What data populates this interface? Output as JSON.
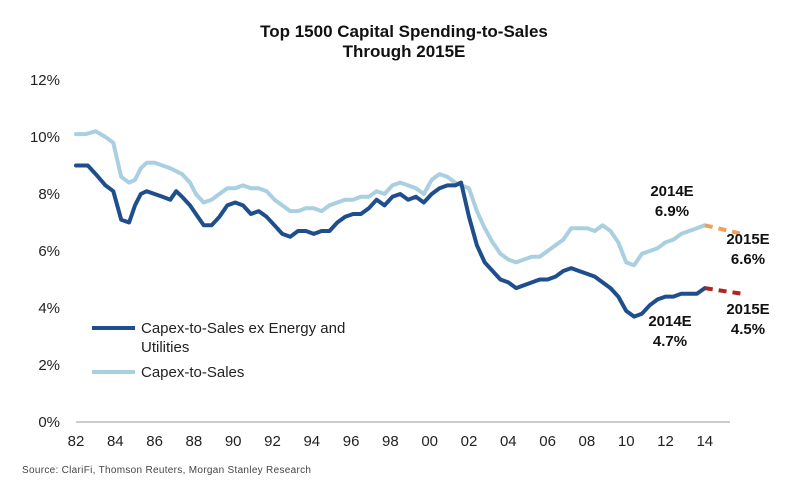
{
  "chart_data": {
    "type": "line",
    "title": "Top 1500 Capital Spending-to-Sales",
    "subtitle": "Through 2015E",
    "xlim": [
      1982,
      2016.3
    ],
    "ylim": [
      0,
      12
    ],
    "x_tick_labels": [
      "82",
      "84",
      "86",
      "88",
      "90",
      "92",
      "94",
      "96",
      "98",
      "00",
      "02",
      "04",
      "06",
      "08",
      "10",
      "12",
      "14"
    ],
    "x_tick_values": [
      1982,
      1984,
      1986,
      1988,
      1990,
      1992,
      1994,
      1996,
      1998,
      2000,
      2002,
      2004,
      2006,
      2008,
      2010,
      2012,
      2014
    ],
    "y_tick_labels": [
      "0%",
      "2%",
      "4%",
      "6%",
      "8%",
      "10%",
      "12%"
    ],
    "y_tick_values": [
      0,
      2,
      4,
      6,
      8,
      10,
      12
    ],
    "grid": false,
    "legend_position": "bottom-left",
    "series": [
      {
        "name": "Capex-to-Sales ex Energy and Utilities",
        "color": "#1f4e8c",
        "x": [
          1982,
          1982.6,
          1983,
          1983.5,
          1983.9,
          1984.3,
          1984.7,
          1985,
          1985.3,
          1985.6,
          1986,
          1986.4,
          1986.8,
          1987.1,
          1987.4,
          1987.8,
          1988.1,
          1988.5,
          1988.9,
          1989.3,
          1989.7,
          1990.1,
          1990.5,
          1990.9,
          1991.3,
          1991.7,
          1992.1,
          1992.5,
          1992.9,
          1993.3,
          1993.7,
          1994.1,
          1994.5,
          1994.9,
          1995.3,
          1995.7,
          1996.1,
          1996.5,
          1996.9,
          1997.3,
          1997.7,
          1998.1,
          1998.5,
          1998.9,
          1999.3,
          1999.7,
          2000.1,
          2000.5,
          2000.9,
          2001.3,
          2001.6,
          2002,
          2002.4,
          2002.8,
          2003.2,
          2003.6,
          2004,
          2004.4,
          2004.8,
          2005.2,
          2005.6,
          2006,
          2006.4,
          2006.8,
          2007.2,
          2007.6,
          2008,
          2008.4,
          2008.8,
          2009.2,
          2009.6,
          2010,
          2010.4,
          2010.8,
          2011.2,
          2011.6,
          2012,
          2012.4,
          2012.8,
          2013.2,
          2013.6,
          2014
        ],
        "values": [
          9.0,
          9.0,
          8.7,
          8.3,
          8.1,
          7.1,
          7.0,
          7.6,
          8.0,
          8.1,
          8.0,
          7.9,
          7.8,
          8.1,
          7.9,
          7.6,
          7.3,
          6.9,
          6.9,
          7.2,
          7.6,
          7.7,
          7.6,
          7.3,
          7.4,
          7.2,
          6.9,
          6.6,
          6.5,
          6.7,
          6.7,
          6.6,
          6.7,
          6.7,
          7.0,
          7.2,
          7.3,
          7.3,
          7.5,
          7.8,
          7.6,
          7.9,
          8.0,
          7.8,
          7.9,
          7.7,
          8.0,
          8.2,
          8.3,
          8.3,
          8.4,
          7.2,
          6.2,
          5.6,
          5.3,
          5.0,
          4.9,
          4.7,
          4.8,
          4.9,
          5.0,
          5.0,
          5.1,
          5.3,
          5.4,
          5.3,
          5.2,
          5.1,
          4.9,
          4.7,
          4.4,
          3.9,
          3.7,
          3.8,
          4.1,
          4.3,
          4.4,
          4.4,
          4.5,
          4.5,
          4.5,
          4.7
        ]
      },
      {
        "name": "Capex-to-Sales",
        "color": "#a9cfe0",
        "x": [
          1982,
          1982.5,
          1983,
          1983.5,
          1983.9,
          1984.3,
          1984.7,
          1985,
          1985.3,
          1985.6,
          1986,
          1986.4,
          1986.8,
          1987.1,
          1987.4,
          1987.8,
          1988.1,
          1988.5,
          1988.9,
          1989.3,
          1989.7,
          1990.1,
          1990.5,
          1990.9,
          1991.3,
          1991.7,
          1992.1,
          1992.5,
          1992.9,
          1993.3,
          1993.7,
          1994.1,
          1994.5,
          1994.9,
          1995.3,
          1995.7,
          1996.1,
          1996.5,
          1996.9,
          1997.3,
          1997.7,
          1998.1,
          1998.5,
          1998.9,
          1999.3,
          1999.7,
          2000.1,
          2000.5,
          2000.9,
          2001.3,
          2001.6,
          2002,
          2002.4,
          2002.8,
          2003.2,
          2003.6,
          2004,
          2004.4,
          2004.8,
          2005.2,
          2005.6,
          2006,
          2006.4,
          2006.8,
          2007.2,
          2007.6,
          2008,
          2008.4,
          2008.8,
          2009.2,
          2009.6,
          2010,
          2010.4,
          2010.8,
          2011.2,
          2011.6,
          2012,
          2012.4,
          2012.8,
          2013.2,
          2013.6,
          2014
        ],
        "values": [
          10.1,
          10.1,
          10.2,
          10.0,
          9.8,
          8.6,
          8.4,
          8.5,
          8.9,
          9.1,
          9.1,
          9.0,
          8.9,
          8.8,
          8.7,
          8.4,
          8.0,
          7.7,
          7.8,
          8.0,
          8.2,
          8.2,
          8.3,
          8.2,
          8.2,
          8.1,
          7.8,
          7.6,
          7.4,
          7.4,
          7.5,
          7.5,
          7.4,
          7.6,
          7.7,
          7.8,
          7.8,
          7.9,
          7.9,
          8.1,
          8.0,
          8.3,
          8.4,
          8.3,
          8.2,
          8.0,
          8.5,
          8.7,
          8.6,
          8.4,
          8.3,
          8.2,
          7.4,
          6.8,
          6.3,
          5.9,
          5.7,
          5.6,
          5.7,
          5.8,
          5.8,
          6.0,
          6.2,
          6.4,
          6.8,
          6.8,
          6.8,
          6.7,
          6.9,
          6.7,
          6.3,
          5.6,
          5.5,
          5.9,
          6.0,
          6.1,
          6.3,
          6.4,
          6.6,
          6.7,
          6.8,
          6.9
        ]
      },
      {
        "name": "Capex-to-Sales 2015E",
        "color": "#f0a05a",
        "dashed": true,
        "x": [
          2014,
          2015.9
        ],
        "values": [
          6.9,
          6.6
        ]
      },
      {
        "name": "Capex-to-Sales ex Energy and Utilities 2015E",
        "color": "#b22222",
        "dashed": true,
        "x": [
          2014,
          2015.9
        ],
        "values": [
          4.7,
          4.5
        ]
      }
    ],
    "annotations": [
      {
        "id": "ann-2014e-top",
        "label": "2014E",
        "value": "6.9%"
      },
      {
        "id": "ann-2015e-top",
        "label": "2015E",
        "value": "6.6%"
      },
      {
        "id": "ann-2014e-bottom",
        "label": "2014E",
        "value": "4.7%"
      },
      {
        "id": "ann-2015e-bottom",
        "label": "2015E",
        "value": "4.5%"
      }
    ],
    "legend": [
      {
        "label_line1": "Capex-to-Sales ex Energy and",
        "label_line2": "Utilities",
        "color": "#1f4e8c"
      },
      {
        "label_line1": "Capex-to-Sales",
        "label_line2": "",
        "color": "#a9cfe0"
      }
    ]
  },
  "source": "Source: ClariFi, Thomson Reuters, Morgan Stanley Research"
}
